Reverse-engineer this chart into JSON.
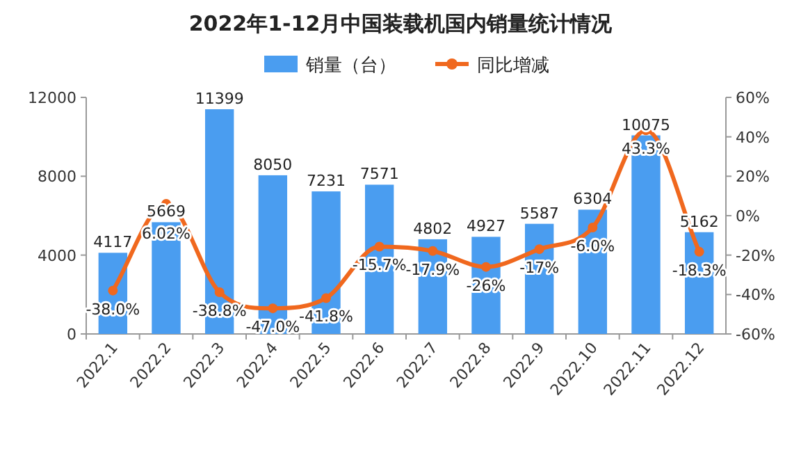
{
  "chart_data": {
    "type": "bar",
    "title": "2022年1-12月中国装载机国内销量统计情况",
    "categories": [
      "2022.1",
      "2022.2",
      "2022.3",
      "2022.4",
      "2022.5",
      "2022.6",
      "2022.7",
      "2022.8",
      "2022.9",
      "2022.10",
      "2022.11",
      "2022.12"
    ],
    "series": [
      {
        "name": "销量（台）",
        "color": "#4a9df0",
        "values": [
          4117,
          5669,
          11399,
          8050,
          7231,
          7571,
          4802,
          4927,
          5587,
          6304,
          10075,
          5162
        ],
        "value_labels": [
          "4117",
          "5669",
          "11399",
          "8050",
          "7231",
          "7571",
          "4802",
          "4927",
          "5587",
          "6304",
          "10075",
          "5162"
        ]
      },
      {
        "name": "同比增减",
        "type": "line",
        "axis": "y2",
        "color": "#f0681e",
        "marker": "circle",
        "values": [
          -38.0,
          6.02,
          -38.8,
          -47.0,
          -41.8,
          -15.7,
          -17.9,
          -26,
          -17,
          -6.0,
          43.3,
          -18.3
        ],
        "value_labels": [
          "-38.0%",
          "6.02%",
          "-38.8%",
          "-47.0%",
          "-41.8%",
          "-15.7%",
          "-17.9%",
          "-26%",
          "-17%",
          "-6.0%",
          "43.3%",
          "-18.3%"
        ]
      }
    ],
    "ylim": [
      0,
      12000
    ],
    "yticks": [
      0,
      4000,
      8000,
      12000
    ],
    "y2lim": [
      -60,
      60
    ],
    "y2ticks": [
      {
        "value": -60,
        "label": "-60%"
      },
      {
        "value": -40,
        "label": "-40%"
      },
      {
        "value": -20,
        "label": "-20%"
      },
      {
        "value": 0,
        "label": "0%"
      },
      {
        "value": 20,
        "label": "20%"
      },
      {
        "value": 40,
        "label": "40%"
      },
      {
        "value": 60,
        "label": "60%"
      }
    ],
    "legend": "top"
  }
}
